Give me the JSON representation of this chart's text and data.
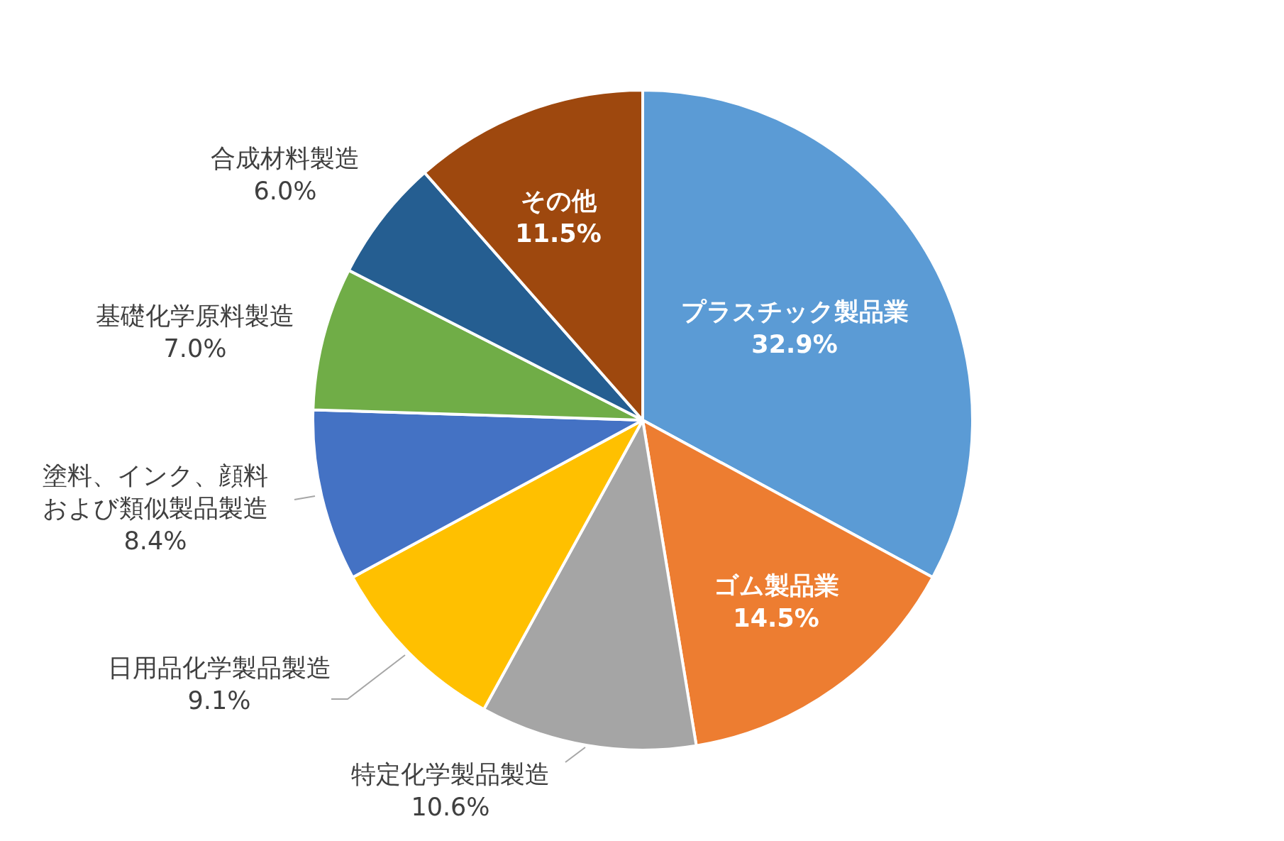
{
  "chart_data": {
    "type": "pie",
    "categories": [
      "プラスチック製品業",
      "ゴム製品業",
      "特定化学製品製造",
      "日用品化学製品製造",
      "塗料、インク、顔料および類似製品製造",
      "基礎化学原料製造",
      "合成材料製造",
      "その他"
    ],
    "values": [
      32.9,
      14.5,
      10.6,
      9.1,
      8.4,
      7.0,
      6.0,
      11.5
    ],
    "value_labels": [
      "32.9%",
      "14.5%",
      "10.6%",
      "9.1%",
      "8.4%",
      "7.0%",
      "6.0%",
      "11.5%"
    ],
    "colors": [
      "#5b9bd5",
      "#ed7d31",
      "#a5a5a5",
      "#ffc000",
      "#4472c4",
      "#70ad47",
      "#255e91",
      "#9e480e"
    ],
    "legend": false
  }
}
